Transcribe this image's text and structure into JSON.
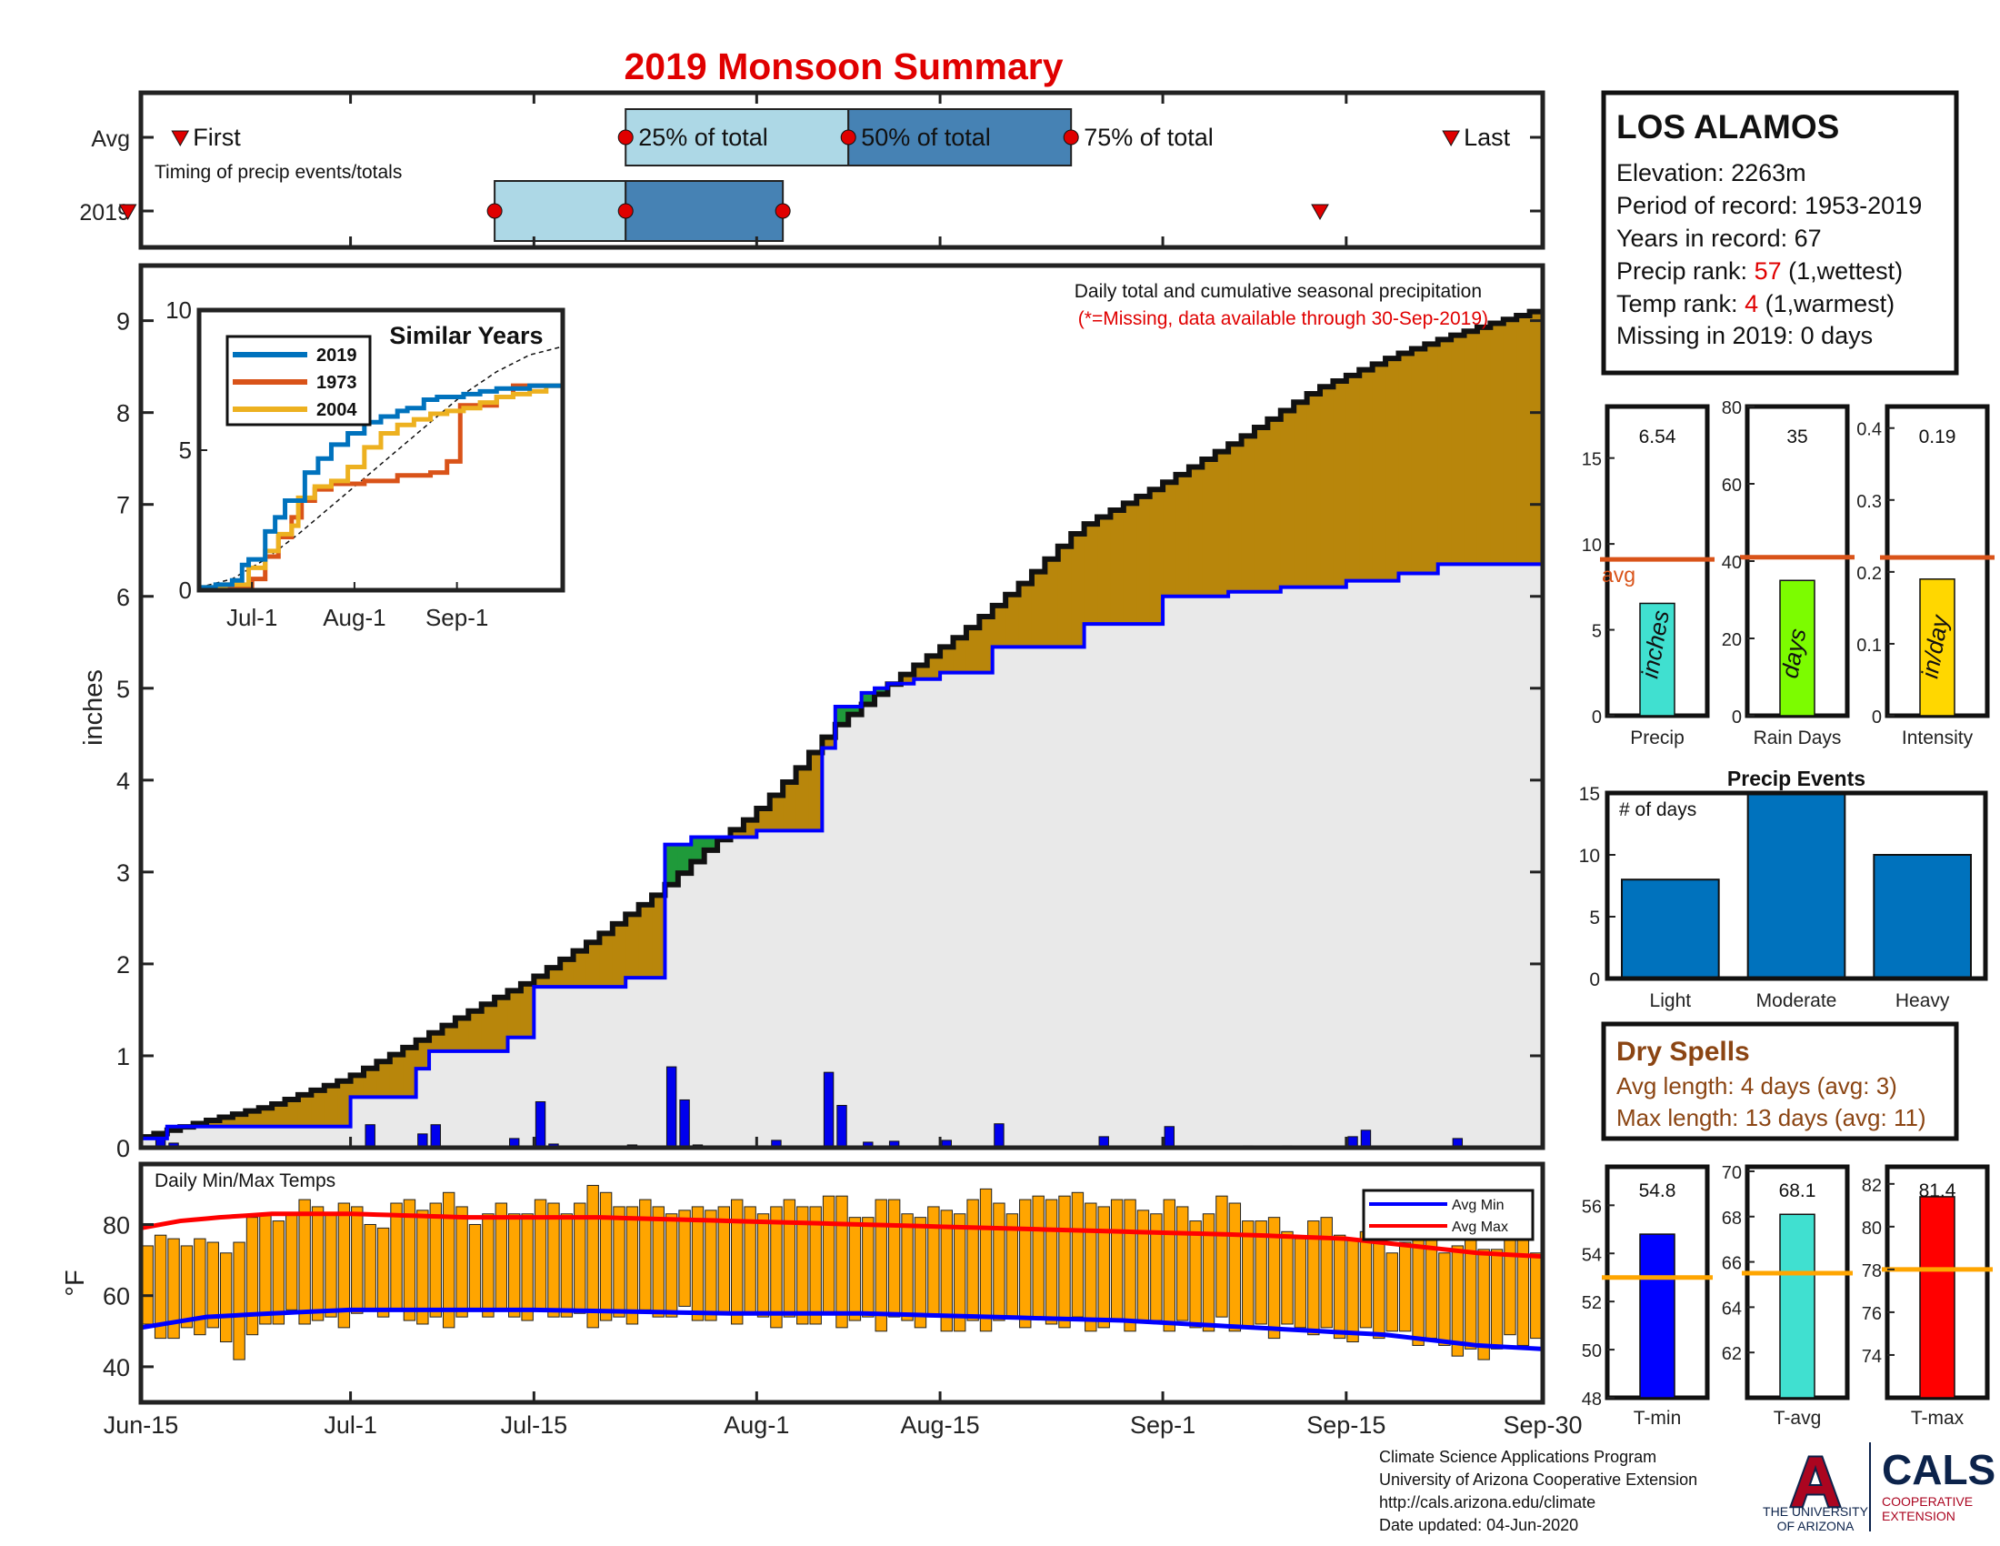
{
  "title": "2019 Monsoon Summary",
  "colors": {
    "title": "#e00000",
    "q_light": "#add8e6",
    "q_dark": "#4682b4",
    "marker": "#e00000",
    "surplus": "#b8860b",
    "deficit": "#1f9a3a",
    "avg_fill": "#e9e9e9",
    "obs_line": "#0000ff",
    "daily_bar": "#0000ee",
    "temp_bar": "#ffa500",
    "avg_min": "#0000ff",
    "avg_max": "#ff0000",
    "s2019": "#0072bd",
    "s1973": "#d95319",
    "s2004": "#edb120",
    "avg_line": "#d95319",
    "precip_bar": "#40e0d0",
    "days_bar": "#7cfc00",
    "intensity_bar": "#ffd700",
    "events_bar": "#0072bd",
    "dry_text": "#8b4513",
    "tmin_bar": "#0000ff",
    "tavg_bar": "#40e0d0",
    "tmax_bar": "#ff0000",
    "t_avg_line": "#ffa500",
    "ua_blue": "#0c234b",
    "ua_red": "#ab0520"
  },
  "timing": {
    "row_labels": [
      "Avg",
      "2019"
    ],
    "first_label": "First",
    "last_label": "Last",
    "caption": "Timing of precip events/totals",
    "q_labels": [
      "25% of total",
      "50% of total",
      "75% of total"
    ],
    "avg": {
      "first": 3,
      "q25": 37,
      "q50": 54,
      "q75": 71,
      "last": 100
    },
    "y2019": {
      "first": -1,
      "q25": 27,
      "q50": 37,
      "q75": 49,
      "last": 90
    }
  },
  "station": {
    "name": "LOS ALAMOS",
    "elevation": "Elevation: 2263m",
    "period": "Period of record: 1953-2019",
    "years": "Years in record: 67",
    "precip_rank_label": "Precip rank: ",
    "precip_rank": "57",
    "precip_rank_note": " (1,wettest)",
    "temp_rank_label": "Temp rank: ",
    "temp_rank": "4",
    "temp_rank_note": " (1,warmest)",
    "missing": "Missing in 2019: 0 days"
  },
  "main_chart": {
    "ylabel": "inches",
    "note": "Daily total and cumulative seasonal precipitation",
    "missing_note": "(*=Missing, data available through 30-Sep-2019)",
    "yticks": [
      0,
      1,
      2,
      3,
      4,
      5,
      6,
      7,
      8,
      9
    ],
    "ylim": [
      0,
      9.6
    ],
    "xlim": [
      0,
      107
    ],
    "xticks": [
      {
        "day": 0,
        "label": "Jun-15"
      },
      {
        "day": 16,
        "label": "Jul-1"
      },
      {
        "day": 30,
        "label": "Jul-15"
      },
      {
        "day": 47,
        "label": "Aug-1"
      },
      {
        "day": 61,
        "label": "Aug-15"
      },
      {
        "day": 78,
        "label": "Sep-1"
      },
      {
        "day": 92,
        "label": "Sep-15"
      },
      {
        "day": 107,
        "label": "Sep-30"
      }
    ],
    "avg_anchors": [
      [
        0,
        0.1
      ],
      [
        5,
        0.28
      ],
      [
        10,
        0.45
      ],
      [
        16,
        0.75
      ],
      [
        20,
        1.05
      ],
      [
        25,
        1.45
      ],
      [
        30,
        1.82
      ],
      [
        35,
        2.28
      ],
      [
        40,
        2.8
      ],
      [
        44,
        3.3
      ],
      [
        47,
        3.62
      ],
      [
        50,
        4.05
      ],
      [
        53,
        4.55
      ],
      [
        58,
        5.1
      ],
      [
        63,
        5.6
      ],
      [
        68,
        6.2
      ],
      [
        72,
        6.75
      ],
      [
        78,
        7.2
      ],
      [
        84,
        7.7
      ],
      [
        90,
        8.25
      ],
      [
        96,
        8.62
      ],
      [
        100,
        8.82
      ],
      [
        103,
        8.95
      ],
      [
        107,
        9.12
      ]
    ],
    "observed_steps": [
      [
        0,
        0.1
      ],
      [
        2,
        0.23
      ],
      [
        16,
        0.55
      ],
      [
        21,
        0.86
      ],
      [
        22,
        1.05
      ],
      [
        28,
        1.2
      ],
      [
        30,
        1.75
      ],
      [
        37,
        1.85
      ],
      [
        40,
        3.3
      ],
      [
        42,
        3.38
      ],
      [
        47,
        3.45
      ],
      [
        52,
        4.35
      ],
      [
        53,
        4.8
      ],
      [
        55,
        4.95
      ],
      [
        56,
        5.0
      ],
      [
        57,
        5.05
      ],
      [
        59,
        5.1
      ],
      [
        61,
        5.17
      ],
      [
        65,
        5.45
      ],
      [
        72,
        5.7
      ],
      [
        78,
        6.0
      ],
      [
        83,
        6.05
      ],
      [
        87,
        6.1
      ],
      [
        92,
        6.17
      ],
      [
        96,
        6.25
      ],
      [
        99,
        6.35
      ],
      [
        105,
        6.35
      ],
      [
        107,
        6.35
      ]
    ],
    "daily_bars": [
      [
        1,
        0.12
      ],
      [
        2,
        0.05
      ],
      [
        17,
        0.25
      ],
      [
        21,
        0.15
      ],
      [
        22,
        0.25
      ],
      [
        28,
        0.1
      ],
      [
        30,
        0.5
      ],
      [
        31,
        0.04
      ],
      [
        37,
        0.03
      ],
      [
        40,
        0.88
      ],
      [
        41,
        0.52
      ],
      [
        42,
        0.03
      ],
      [
        47,
        0.02
      ],
      [
        48,
        0.08
      ],
      [
        52,
        0.82
      ],
      [
        53,
        0.46
      ],
      [
        55,
        0.06
      ],
      [
        57,
        0.07
      ],
      [
        61,
        0.08
      ],
      [
        65,
        0.26
      ],
      [
        73,
        0.12
      ],
      [
        78,
        0.23
      ],
      [
        84,
        0.02
      ],
      [
        87,
        0.02
      ],
      [
        92,
        0.12
      ],
      [
        93,
        0.19
      ],
      [
        100,
        0.1
      ]
    ]
  },
  "inset": {
    "title": "Similar Years",
    "yticks": [
      0,
      5,
      10
    ],
    "xticks": [
      "Jul-1",
      "Aug-1",
      "Sep-1"
    ],
    "legend": [
      "2019",
      "1973",
      "2004"
    ],
    "s2019": [
      [
        0,
        0.1
      ],
      [
        5,
        0.2
      ],
      [
        10,
        0.35
      ],
      [
        13,
        0.9
      ],
      [
        15,
        1.1
      ],
      [
        20,
        2.1
      ],
      [
        23,
        2.6
      ],
      [
        26,
        3.2
      ],
      [
        32,
        4.2
      ],
      [
        36,
        4.7
      ],
      [
        40,
        5.2
      ],
      [
        45,
        5.6
      ],
      [
        50,
        6.0
      ],
      [
        55,
        6.2
      ],
      [
        60,
        6.4
      ],
      [
        63,
        6.5
      ],
      [
        68,
        6.8
      ],
      [
        72,
        6.9
      ],
      [
        80,
        7.0
      ],
      [
        85,
        7.1
      ],
      [
        90,
        7.2
      ],
      [
        95,
        7.2
      ],
      [
        100,
        7.3
      ],
      [
        105,
        7.3
      ],
      [
        110,
        7.4
      ]
    ],
    "s1973": [
      [
        0,
        0.05
      ],
      [
        12,
        0.05
      ],
      [
        16,
        0.4
      ],
      [
        20,
        1.2
      ],
      [
        24,
        1.9
      ],
      [
        28,
        2.6
      ],
      [
        31,
        3.2
      ],
      [
        35,
        3.6
      ],
      [
        40,
        3.8
      ],
      [
        50,
        3.9
      ],
      [
        60,
        4.1
      ],
      [
        70,
        4.2
      ],
      [
        75,
        4.6
      ],
      [
        79,
        6.6
      ],
      [
        85,
        6.6
      ],
      [
        90,
        6.9
      ],
      [
        95,
        7.3
      ],
      [
        100,
        7.3
      ],
      [
        105,
        7.3
      ],
      [
        110,
        7.3
      ]
    ],
    "s2004": [
      [
        0,
        0.1
      ],
      [
        8,
        0.2
      ],
      [
        15,
        0.8
      ],
      [
        20,
        1.4
      ],
      [
        24,
        2.0
      ],
      [
        28,
        2.3
      ],
      [
        30,
        3.3
      ],
      [
        35,
        3.7
      ],
      [
        40,
        3.9
      ],
      [
        45,
        4.4
      ],
      [
        50,
        5.1
      ],
      [
        55,
        5.6
      ],
      [
        60,
        5.9
      ],
      [
        65,
        6.1
      ],
      [
        70,
        6.3
      ],
      [
        75,
        6.4
      ],
      [
        80,
        6.5
      ],
      [
        85,
        6.7
      ],
      [
        90,
        6.9
      ],
      [
        95,
        7.0
      ],
      [
        100,
        7.1
      ],
      [
        105,
        7.3
      ],
      [
        110,
        7.6
      ]
    ],
    "avg": [
      [
        0,
        0.1
      ],
      [
        10,
        0.4
      ],
      [
        20,
        1.1
      ],
      [
        30,
        2.0
      ],
      [
        40,
        3.0
      ],
      [
        50,
        4.0
      ],
      [
        60,
        5.0
      ],
      [
        70,
        6.0
      ],
      [
        80,
        7.0
      ],
      [
        90,
        7.8
      ],
      [
        100,
        8.4
      ],
      [
        110,
        8.7
      ]
    ]
  },
  "bar_panels": [
    {
      "label": "Precip",
      "value_text": "6.54",
      "value": 6.54,
      "avg": 9.1,
      "ymax": 18,
      "yticks": [
        0,
        5,
        10,
        15
      ],
      "unit": "inches",
      "color_key": "precip_bar",
      "avg_label": "avg"
    },
    {
      "label": "Rain Days",
      "value_text": "35",
      "value": 35,
      "avg": 41,
      "ymax": 80,
      "yticks": [
        0,
        20,
        40,
        60,
        80
      ],
      "unit": "days",
      "color_key": "days_bar",
      "avg_label": ""
    },
    {
      "label": "Intensity",
      "value_text": "0.19",
      "value": 0.19,
      "avg": 0.22,
      "ymax": 0.43,
      "yticks": [
        0,
        0.1,
        0.2,
        0.3,
        0.4
      ],
      "unit": "in/day",
      "color_key": "intensity_bar",
      "avg_label": ""
    }
  ],
  "events": {
    "title": "Precip Events",
    "ylabel": "# of days",
    "categories": [
      "Light",
      "Moderate",
      "Heavy"
    ],
    "values": [
      8,
      15,
      10
    ],
    "yticks": [
      0,
      5,
      10,
      15
    ],
    "ymax": 15
  },
  "dry_spells": {
    "title": "Dry Spells",
    "avg_length": "Avg length: 4 days (avg: 3)",
    "max_length": "Max length: 13 days (avg: 11)"
  },
  "temps": {
    "title": "Daily Min/Max Temps",
    "ylabel": "°F",
    "yticks": [
      40,
      60,
      80
    ],
    "ylim": [
      30,
      97
    ],
    "legend": [
      "Avg Min",
      "Avg Max"
    ],
    "tmax_anchors": [
      [
        0,
        73
      ],
      [
        3,
        77
      ],
      [
        6,
        72
      ],
      [
        9,
        82
      ],
      [
        12,
        84
      ],
      [
        15,
        86
      ],
      [
        18,
        80
      ],
      [
        20,
        85
      ],
      [
        23,
        87
      ],
      [
        26,
        82
      ],
      [
        30,
        86
      ],
      [
        32,
        84
      ],
      [
        34,
        88
      ],
      [
        36,
        89
      ],
      [
        38,
        84
      ],
      [
        40,
        86
      ],
      [
        42,
        82
      ],
      [
        44,
        87
      ],
      [
        46,
        84
      ],
      [
        48,
        86
      ],
      [
        50,
        84
      ],
      [
        52,
        88
      ],
      [
        55,
        83
      ],
      [
        58,
        86
      ],
      [
        60,
        82
      ],
      [
        63,
        86
      ],
      [
        65,
        88
      ],
      [
        67,
        84
      ],
      [
        70,
        90
      ],
      [
        72,
        85
      ],
      [
        74,
        88
      ],
      [
        76,
        84
      ],
      [
        78,
        86
      ],
      [
        80,
        82
      ],
      [
        83,
        86
      ],
      [
        85,
        82
      ],
      [
        88,
        78
      ],
      [
        90,
        80
      ],
      [
        92,
        78
      ],
      [
        95,
        74
      ],
      [
        98,
        77
      ],
      [
        100,
        73
      ],
      [
        103,
        75
      ],
      [
        105,
        74
      ],
      [
        107,
        75
      ]
    ],
    "tmin_anchors": [
      [
        0,
        50
      ],
      [
        3,
        48
      ],
      [
        5,
        52
      ],
      [
        7,
        45
      ],
      [
        8,
        43
      ],
      [
        9,
        52
      ],
      [
        12,
        54
      ],
      [
        15,
        52
      ],
      [
        18,
        56
      ],
      [
        20,
        54
      ],
      [
        23,
        52
      ],
      [
        26,
        56
      ],
      [
        29,
        54
      ],
      [
        32,
        55
      ],
      [
        35,
        52
      ],
      [
        38,
        54
      ],
      [
        41,
        55
      ],
      [
        44,
        53
      ],
      [
        47,
        54
      ],
      [
        50,
        52
      ],
      [
        53,
        53
      ],
      [
        56,
        52
      ],
      [
        59,
        53
      ],
      [
        62,
        51
      ],
      [
        65,
        52
      ],
      [
        68,
        53
      ],
      [
        71,
        52
      ],
      [
        74,
        51
      ],
      [
        77,
        52
      ],
      [
        80,
        51
      ],
      [
        83,
        52
      ],
      [
        86,
        50
      ],
      [
        89,
        51
      ],
      [
        92,
        48
      ],
      [
        95,
        50
      ],
      [
        98,
        47
      ],
      [
        100,
        45
      ],
      [
        102,
        42
      ],
      [
        104,
        47
      ],
      [
        107,
        48
      ]
    ],
    "avg_max": [
      [
        0,
        79
      ],
      [
        3,
        81
      ],
      [
        6,
        82
      ],
      [
        10,
        83
      ],
      [
        16,
        83
      ],
      [
        25,
        82
      ],
      [
        35,
        82
      ],
      [
        45,
        81
      ],
      [
        55,
        80
      ],
      [
        65,
        79
      ],
      [
        75,
        78
      ],
      [
        85,
        77
      ],
      [
        92,
        76
      ],
      [
        97,
        74
      ],
      [
        102,
        72
      ],
      [
        107,
        71
      ]
    ],
    "avg_min": [
      [
        0,
        51
      ],
      [
        5,
        54
      ],
      [
        10,
        55
      ],
      [
        16,
        56
      ],
      [
        30,
        56
      ],
      [
        45,
        55
      ],
      [
        55,
        55
      ],
      [
        65,
        54
      ],
      [
        75,
        53
      ],
      [
        85,
        51
      ],
      [
        95,
        49
      ],
      [
        102,
        46
      ],
      [
        107,
        45
      ]
    ]
  },
  "temp_panels": [
    {
      "label": "T-min",
      "value_text": "54.8",
      "value": 54.8,
      "avg": 53.0,
      "ymin": 48,
      "ymax": 57.6,
      "yticks": [
        48,
        50,
        52,
        54,
        56
      ],
      "color_key": "tmin_bar"
    },
    {
      "label": "T-avg",
      "value_text": "68.1",
      "value": 68.1,
      "avg": 65.5,
      "ymin": 60,
      "ymax": 70.2,
      "yticks": [
        62,
        64,
        66,
        68,
        70
      ],
      "color_key": "tavg_bar"
    },
    {
      "label": "T-max",
      "value_text": "81.4",
      "value": 81.4,
      "avg": 78.0,
      "ymin": 72,
      "ymax": 82.8,
      "yticks": [
        74,
        76,
        78,
        80,
        82
      ],
      "color_key": "tmax_bar"
    }
  ],
  "footer": {
    "line1": "Climate Science Applications Program",
    "line2": "University of Arizona Cooperative Extension",
    "line3": "http://cals.arizona.edu/climate",
    "line4": " Date updated: 04-Jun-2020"
  },
  "logos": {
    "ua_letter": "A",
    "ua_line1": "THE UNIVERSITY",
    "ua_line2": "OF ARIZONA",
    "cals_name": "CALS",
    "cals_line1": "COOPERATIVE",
    "cals_line2": "EXTENSION"
  },
  "chart_data": [
    {
      "type": "area",
      "title": "Daily total and cumulative seasonal precipitation",
      "ylabel": "inches",
      "ylim": [
        0,
        9.6
      ],
      "series": [
        "cumulative average (stair)",
        "observed 2019 (stair)",
        "daily totals (bars)"
      ]
    },
    {
      "type": "line",
      "title": "Similar Years",
      "series": [
        {
          "name": "2019"
        },
        {
          "name": "1973"
        },
        {
          "name": "2004"
        }
      ]
    },
    {
      "type": "bar",
      "categories": [
        "Precip",
        "Rain Days",
        "Intensity"
      ],
      "values": [
        6.54,
        35,
        0.19
      ]
    },
    {
      "type": "bar",
      "title": "Precip Events",
      "categories": [
        "Light",
        "Moderate",
        "Heavy"
      ],
      "values": [
        8,
        15,
        10
      ]
    },
    {
      "type": "bar",
      "title": "Daily Min/Max Temps",
      "ylabel": "°F",
      "series": [
        {
          "name": "Avg Min"
        },
        {
          "name": "Avg Max"
        }
      ]
    },
    {
      "type": "bar",
      "categories": [
        "T-min",
        "T-avg",
        "T-max"
      ],
      "values": [
        54.8,
        68.1,
        81.4
      ]
    }
  ]
}
